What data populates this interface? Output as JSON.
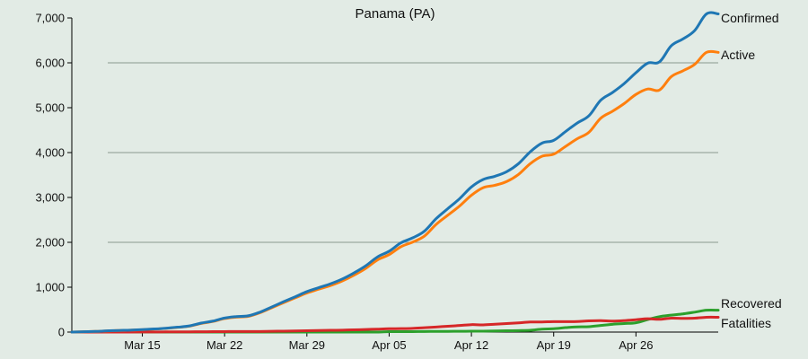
{
  "chart_data": {
    "type": "line",
    "title": "Panama (PA)",
    "xlabel": "",
    "ylabel": "",
    "x_start": "Mar 09",
    "x": [
      "Mar 09",
      "Mar 10",
      "Mar 11",
      "Mar 12",
      "Mar 13",
      "Mar 14",
      "Mar 15",
      "Mar 16",
      "Mar 17",
      "Mar 18",
      "Mar 19",
      "Mar 20",
      "Mar 21",
      "Mar 22",
      "Mar 23",
      "Mar 24",
      "Mar 25",
      "Mar 26",
      "Mar 27",
      "Mar 28",
      "Mar 29",
      "Mar 30",
      "Mar 31",
      "Apr 01",
      "Apr 02",
      "Apr 03",
      "Apr 04",
      "Apr 05",
      "Apr 06",
      "Apr 07",
      "Apr 08",
      "Apr 09",
      "Apr 10",
      "Apr 11",
      "Apr 12",
      "Apr 13",
      "Apr 14",
      "Apr 15",
      "Apr 16",
      "Apr 17",
      "Apr 18",
      "Apr 19",
      "Apr 20",
      "Apr 21",
      "Apr 22",
      "Apr 23",
      "Apr 24",
      "Apr 25",
      "Apr 26",
      "Apr 27",
      "Apr 28",
      "Apr 29",
      "Apr 30",
      "May 01",
      "May 02",
      "May 03"
    ],
    "x_ticks": [
      "Mar 15",
      "Mar 22",
      "Mar 29",
      "Apr 05",
      "Apr 12",
      "Apr 19",
      "Apr 26"
    ],
    "ylim": [
      0,
      7000
    ],
    "y_ticks": [
      "0",
      "1,000",
      "2,000",
      "3,000",
      "4,000",
      "5,000",
      "6,000",
      "7,000"
    ],
    "y_tick_values": [
      0,
      1000,
      2000,
      3000,
      4000,
      5000,
      6000,
      7000
    ],
    "grid": "horizontal at 2,000 / 4,000 / 6,000",
    "legend": "labels at line ends (right)",
    "series": [
      {
        "name": "Confirmed",
        "color": "#1f77b4",
        "values": [
          1,
          8,
          14,
          27,
          36,
          43,
          55,
          69,
          86,
          109,
          137,
          200,
          245,
          313,
          345,
          362,
          443,
          558,
          674,
          786,
          901,
          989,
          1075,
          1181,
          1317,
          1475,
          1673,
          1801,
          1988,
          2100,
          2249,
          2528,
          2752,
          2974,
          3234,
          3400,
          3472,
          3574,
          3751,
          4016,
          4210,
          4273,
          4467,
          4658,
          4821,
          5166,
          5338,
          5538,
          5779,
          5992,
          6021,
          6378,
          6532,
          6720,
          7090,
          7090
        ]
      },
      {
        "name": "Active",
        "color": "#ff7f0e",
        "values": [
          1,
          8,
          14,
          26,
          35,
          42,
          53,
          66,
          82,
          104,
          131,
          192,
          236,
          302,
          333,
          349,
          430,
          541,
          653,
          762,
          871,
          955,
          1036,
          1138,
          1267,
          1418,
          1607,
          1726,
          1901,
          2006,
          2138,
          2400,
          2606,
          2810,
          3049,
          3218,
          3271,
          3355,
          3512,
          3752,
          3918,
          3965,
          4136,
          4307,
          4452,
          4765,
          4920,
          5093,
          5296,
          5416,
          5394,
          5691,
          5822,
          5966,
          6233,
          6233
        ]
      },
      {
        "name": "Recovered",
        "color": "#2ca02c",
        "values": [
          0,
          0,
          0,
          0,
          0,
          0,
          0,
          0,
          0,
          0,
          0,
          0,
          0,
          0,
          0,
          0,
          0,
          0,
          0,
          0,
          0,
          0,
          0,
          0,
          0,
          0,
          0,
          9,
          10,
          11,
          13,
          15,
          16,
          17,
          19,
          21,
          26,
          29,
          33,
          40,
          66,
          76,
          99,
          116,
          120,
          147,
          173,
          190,
          208,
          279,
          343,
          377,
          405,
          444,
          487,
          487
        ]
      },
      {
        "name": "Fatalities",
        "color": "#d62728",
        "values": [
          0,
          0,
          0,
          1,
          1,
          1,
          2,
          3,
          4,
          5,
          6,
          8,
          9,
          11,
          12,
          13,
          13,
          17,
          21,
          24,
          30,
          34,
          39,
          43,
          50,
          57,
          66,
          74,
          77,
          83,
          98,
          113,
          130,
          147,
          166,
          161,
          175,
          190,
          206,
          224,
          226,
          232,
          232,
          235,
          249,
          254,
          245,
          255,
          275,
          297,
          284,
          310,
          305,
          310,
          330,
          330
        ]
      }
    ]
  }
}
